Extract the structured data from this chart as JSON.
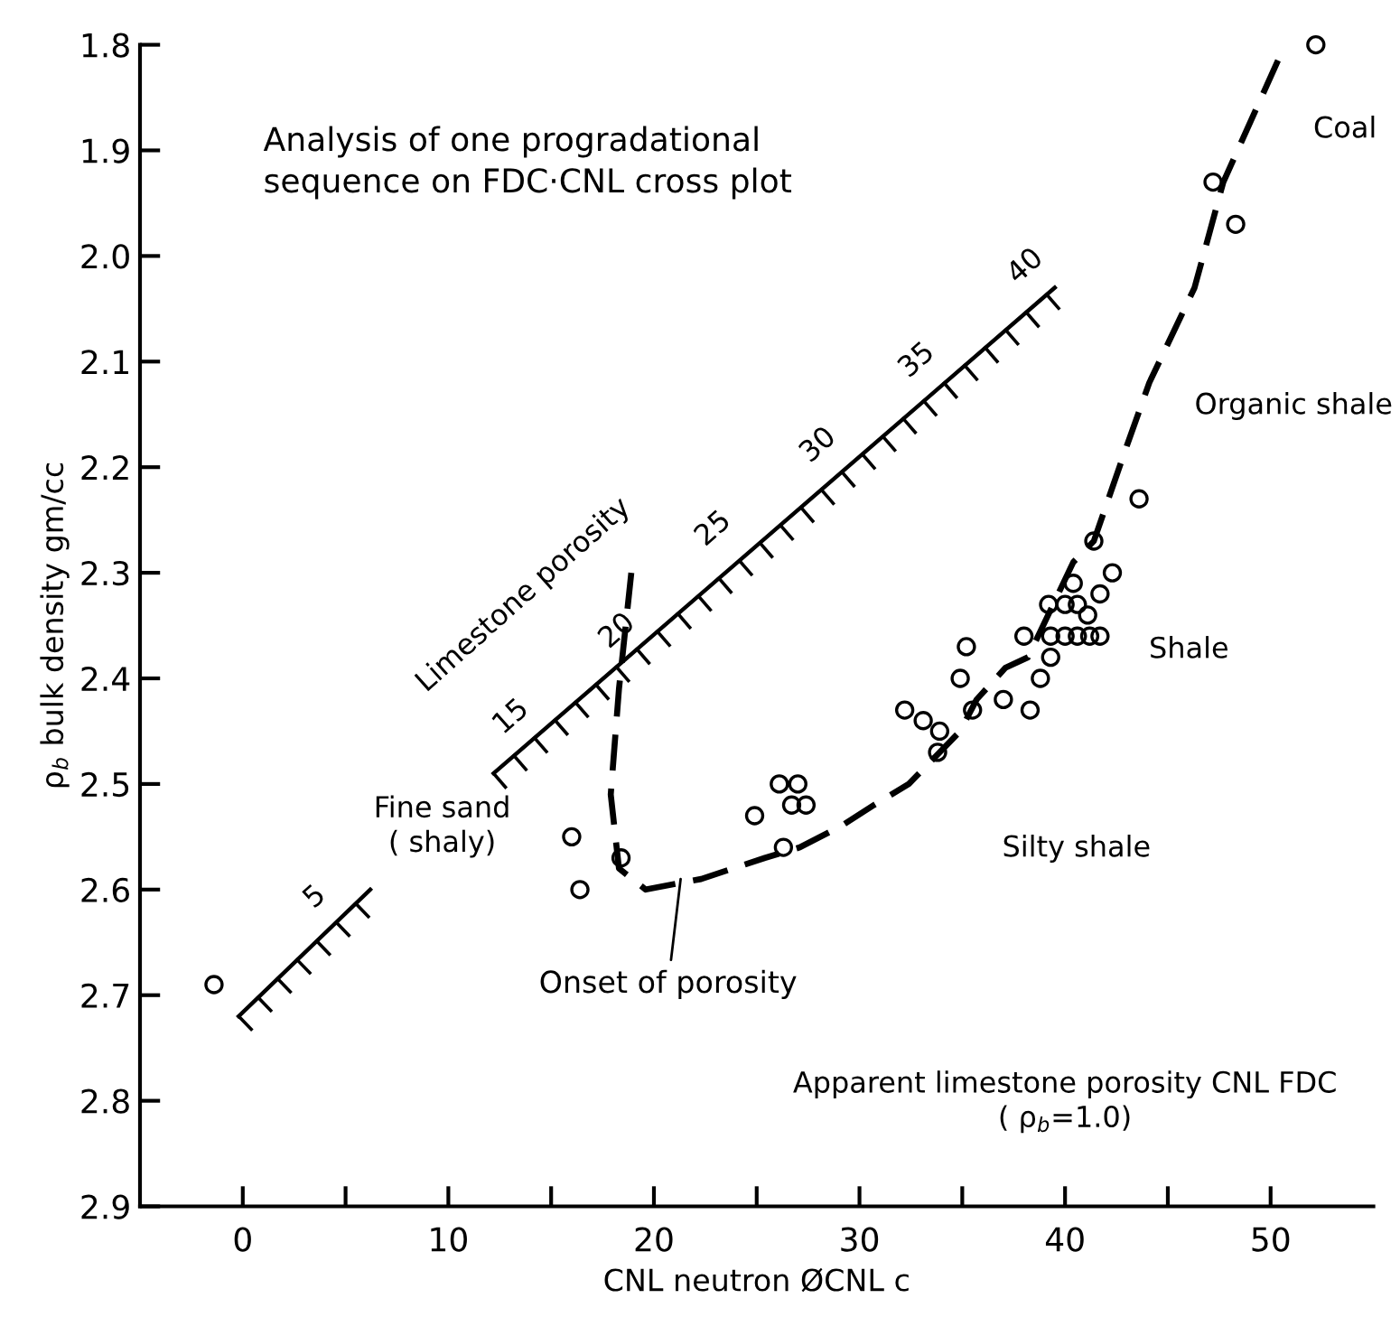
{
  "chart_data": {
    "type": "scatter",
    "title": "Analysis of one progradational\nsequence on FDC·CNL cross plot",
    "xlabel": "CNL neutron ØCNL c",
    "ylabel": "ρ$_{b}$ bulk density gm/cc",
    "xlim": [
      -5,
      55
    ],
    "ylim": [
      2.9,
      1.8
    ],
    "xticks": [
      0,
      {
        "value": 5,
        "label": null
      },
      10,
      {
        "value": 15,
        "label": null
      },
      20,
      {
        "value": 25,
        "label": null
      },
      30,
      {
        "value": 35,
        "label": null
      },
      40,
      {
        "value": 45,
        "label": null
      },
      50
    ],
    "yticks": [
      1.8,
      1.9,
      {
        "value": 2.0,
        "label": "2.0"
      },
      2.1,
      2.2,
      2.3,
      2.4,
      2.5,
      2.6,
      2.7,
      2.8,
      2.9
    ],
    "grid": false,
    "legend": false,
    "marker": "circle",
    "series": [
      {
        "color": "#000000",
        "x": [
          52.2,
          47.2,
          48.3,
          43.6,
          41.4,
          42.3,
          40.4,
          41.7,
          39.2,
          40.0,
          40.6,
          41.1,
          38.0,
          39.3,
          40.0,
          40.6,
          41.2,
          41.7,
          35.2,
          39.3,
          34.9,
          38.8,
          32.2,
          33.1,
          33.9,
          33.8,
          35.5,
          37.0,
          38.3,
          24.9,
          26.1,
          27.0,
          26.7,
          27.4,
          26.3,
          16.0,
          16.4,
          18.4,
          -1.4
        ],
        "values": [
          1.8,
          1.93,
          1.97,
          2.23,
          2.27,
          2.3,
          2.31,
          2.32,
          2.33,
          2.33,
          2.33,
          2.34,
          2.36,
          2.36,
          2.36,
          2.36,
          2.36,
          2.36,
          2.37,
          2.38,
          2.4,
          2.4,
          2.43,
          2.44,
          2.45,
          2.47,
          2.43,
          2.42,
          2.43,
          2.53,
          2.5,
          2.5,
          2.52,
          2.52,
          2.56,
          2.55,
          2.6,
          2.57,
          2.69
        ]
      },
      {
        "type": "line",
        "color": "#000000",
        "line_style": "dashed",
        "marker": "none",
        "x": [
          18.9,
          18.3,
          17.9,
          18.3,
          19.6,
          22.3,
          25.4,
          27.1,
          29.1,
          30.7,
          32.4,
          33.9,
          34.9,
          35.7,
          37.1,
          38.2,
          40.4,
          41.4,
          43.0,
          44.1,
          46.3,
          47.7,
          50.7
        ],
        "values": [
          2.3,
          2.41,
          2.51,
          2.58,
          2.6,
          2.59,
          2.57,
          2.56,
          2.54,
          2.52,
          2.5,
          2.47,
          2.45,
          2.42,
          2.39,
          2.38,
          2.29,
          2.27,
          2.18,
          2.12,
          2.03,
          1.93,
          1.8
        ]
      },
      {
        "type": "line",
        "color": "#000000",
        "line_style": "solid",
        "marker": "none",
        "x": [
          -0.2,
          6.2,
          null,
          12.2,
          39.5
        ],
        "values": [
          2.72,
          2.6,
          null,
          2.49,
          2.03
        ]
      }
    ],
    "annotations": [
      "Coal",
      "Organic shale",
      "Shale",
      "Silty shale",
      "Fine sand\n( shaly)",
      {
        "text": "Onset of porosity",
        "x": 21.3,
        "y": 2.59
      },
      "Limestone porosity",
      "5",
      "15",
      "20",
      "25",
      "30",
      "35",
      "40",
      "Apparent limestone porosity CNL FDC\n( ρ$_{b}$=1.0)"
    ]
  }
}
